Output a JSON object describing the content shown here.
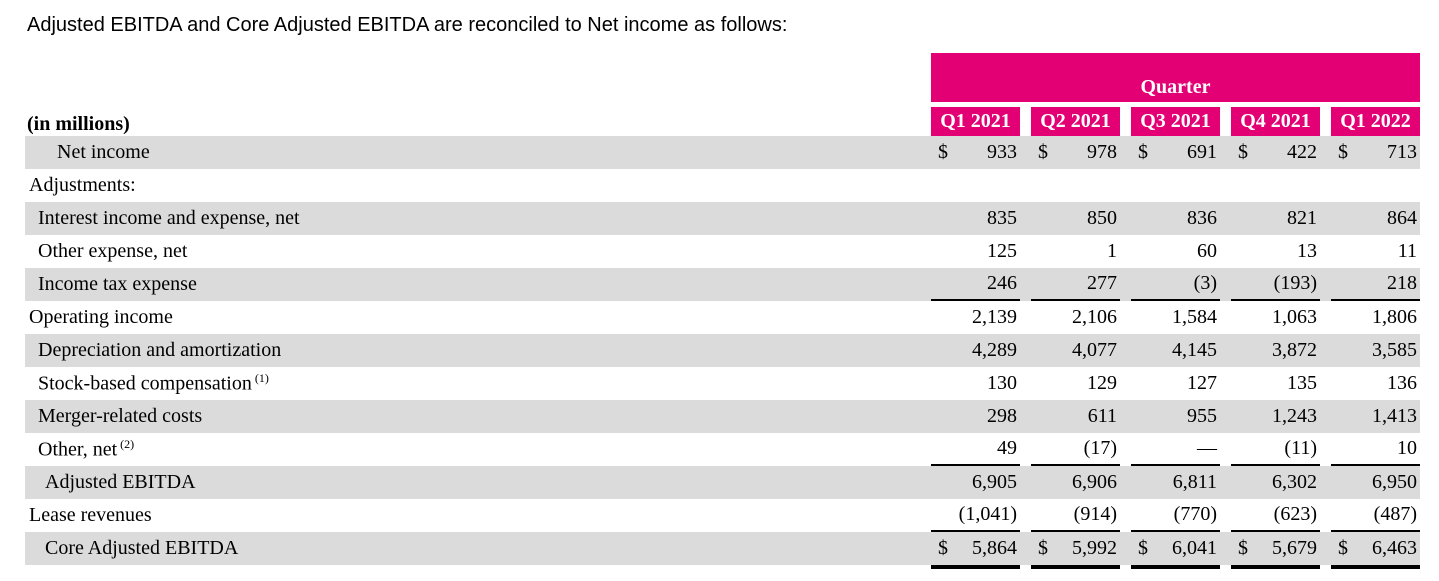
{
  "title": "Adjusted EBITDA and Core Adjusted EBITDA are reconciled to Net income as follows:",
  "colors": {
    "magenta": "#E20074",
    "row_gray": "#DBDBDB"
  },
  "table": {
    "units_label": "(in millions)",
    "group_header": "Quarter",
    "columns": [
      "Q1 2021",
      "Q2 2021",
      "Q3 2021",
      "Q4 2021",
      "Q1 2022"
    ],
    "rows": [
      {
        "label": "Net income",
        "dollar": "$",
        "values": [
          "933",
          "978",
          "691",
          "422",
          "713"
        ]
      },
      {
        "label": "Adjustments:",
        "values": [
          "",
          "",
          "",
          "",
          ""
        ]
      },
      {
        "label": "Interest income and expense, net",
        "values": [
          "835",
          "850",
          "836",
          "821",
          "864"
        ]
      },
      {
        "label": "Other expense, net",
        "values": [
          "125",
          "1",
          "60",
          "13",
          "11"
        ]
      },
      {
        "label": "Income tax expense",
        "values": [
          "246",
          "277",
          "(3)",
          "(193)",
          "218"
        ]
      },
      {
        "label": "Operating income",
        "values": [
          "2,139",
          "2,106",
          "1,584",
          "1,063",
          "1,806"
        ]
      },
      {
        "label": "Depreciation and amortization",
        "values": [
          "4,289",
          "4,077",
          "4,145",
          "3,872",
          "3,585"
        ]
      },
      {
        "label": "Stock-based compensation",
        "footnote": "(1)",
        "values": [
          "130",
          "129",
          "127",
          "135",
          "136"
        ]
      },
      {
        "label": "Merger-related costs",
        "values": [
          "298",
          "611",
          "955",
          "1,243",
          "1,413"
        ]
      },
      {
        "label": "Other, net",
        "footnote": "(2)",
        "values": [
          "49",
          "(17)",
          "—",
          "(11)",
          "10"
        ]
      },
      {
        "label": "Adjusted EBITDA",
        "values": [
          "6,905",
          "6,906",
          "6,811",
          "6,302",
          "6,950"
        ]
      },
      {
        "label": "Lease revenues",
        "values": [
          "(1,041)",
          "(914)",
          "(770)",
          "(623)",
          "(487)"
        ]
      },
      {
        "label": "Core Adjusted EBITDA",
        "dollar": "$",
        "values": [
          "5,864",
          "5,992",
          "6,041",
          "5,679",
          "6,463"
        ]
      }
    ]
  }
}
